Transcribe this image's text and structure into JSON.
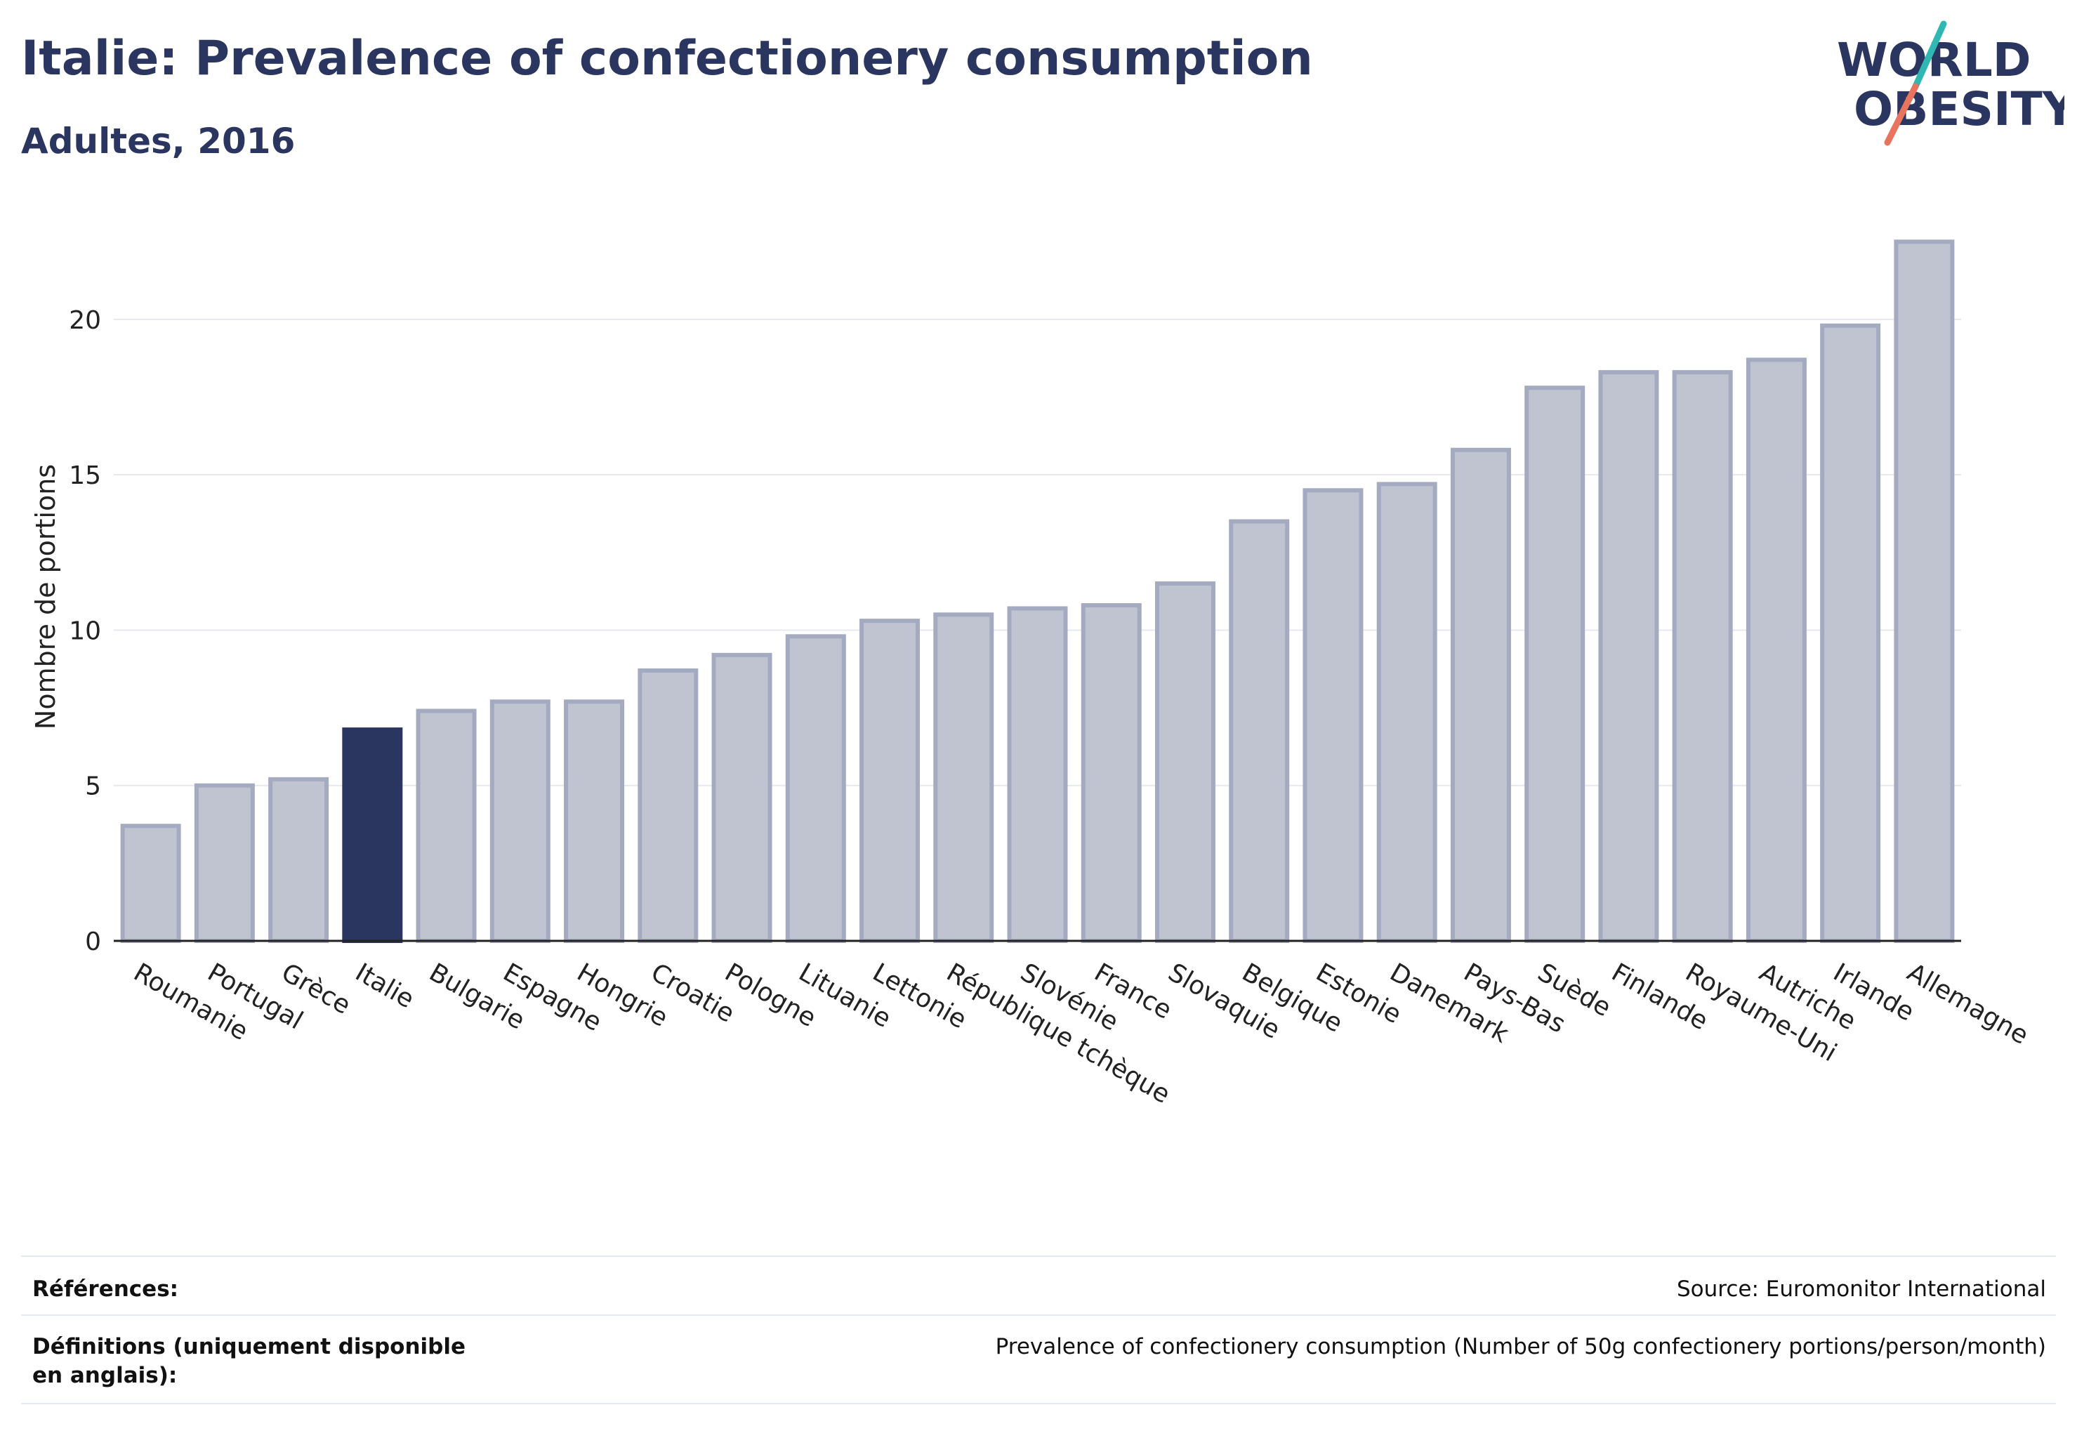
{
  "header": {
    "title": "Italie: Prevalence of confectionery consumption",
    "subtitle": "Adultes, 2016"
  },
  "logo": {
    "line1": "WORLD",
    "line2": "OBESITY",
    "accent_colors": [
      "#2fb8b3",
      "#e8735f"
    ]
  },
  "colors": {
    "highlight": "#2b3660",
    "bar": "#c0c4d0",
    "bar_stroke": "#a4aac0",
    "grid": "#e6e8ee",
    "axis": "#222222"
  },
  "chart_data": {
    "type": "bar",
    "ylabel": "Nombre de portions",
    "ylim": [
      0,
      23.5
    ],
    "yticks": [
      0,
      5,
      10,
      15,
      20
    ],
    "grid": true,
    "highlight": "Italie",
    "categories": [
      "Roumanie",
      "Portugal",
      "Grèce",
      "Italie",
      "Bulgarie",
      "Espagne",
      "Hongrie",
      "Croatie",
      "Pologne",
      "Lituanie",
      "Lettonie",
      "République tchèque",
      "Slovénie",
      "France",
      "Slovaquie",
      "Belgique",
      "Estonie",
      "Danemark",
      "Pays-Bas",
      "Suède",
      "Finlande",
      "Royaume-Uni",
      "Autriche",
      "Irlande",
      "Allemagne"
    ],
    "values": [
      3.7,
      5.0,
      5.2,
      6.8,
      7.4,
      7.7,
      7.7,
      8.7,
      9.2,
      9.8,
      10.3,
      10.5,
      10.7,
      10.8,
      11.5,
      13.5,
      14.5,
      14.7,
      15.8,
      17.8,
      18.3,
      18.3,
      18.7,
      19.8,
      22.5
    ]
  },
  "footer": {
    "references_label": "Références:",
    "references_value": "Source: Euromonitor International",
    "definitions_label": "Définitions (uniquement disponible en anglais):",
    "definitions_value": "Prevalence of confectionery consumption (Number of 50g confectionery portions/person/month)"
  }
}
